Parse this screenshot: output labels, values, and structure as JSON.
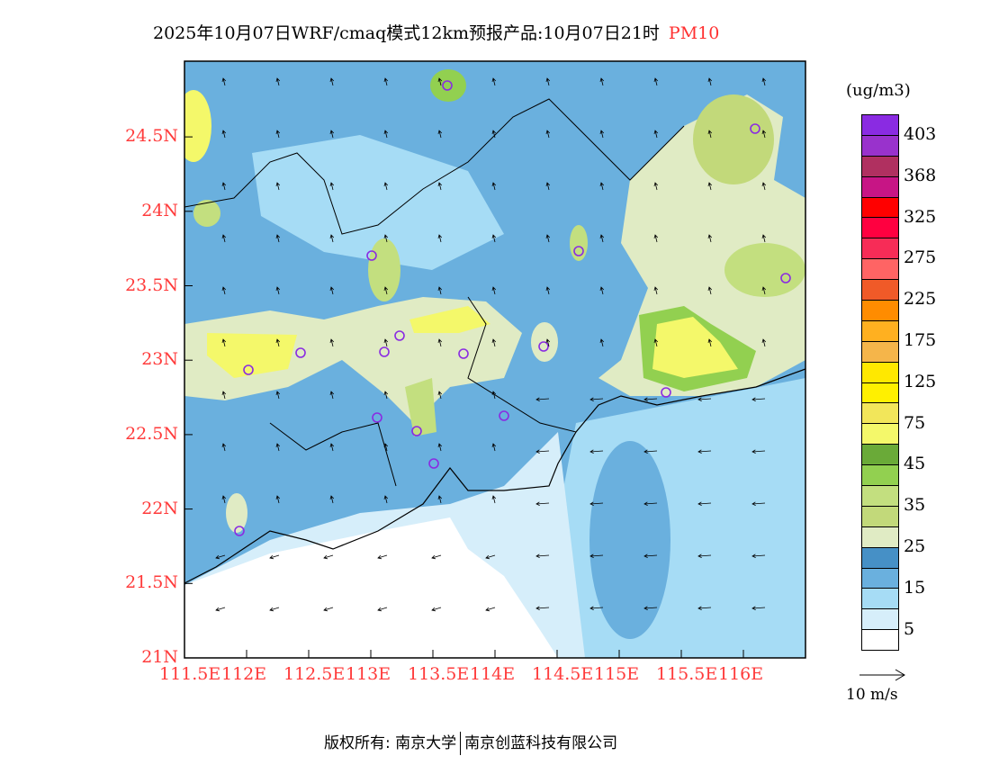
{
  "title": {
    "main": "2025年10月07日WRF/cmaq模式12km预报产品:10月07日21时",
    "pollutant": "PM10",
    "pollutant_color": "#ff3030"
  },
  "colorbar": {
    "unit": "(ug/m3)",
    "colors": [
      "#8a2be2",
      "#9932cc",
      "#b03060",
      "#c71585",
      "#ff0000",
      "#ff0040",
      "#f72c57",
      "#ff6464",
      "#f05a28",
      "#ff8c00",
      "#ffb020",
      "#f5b54a",
      "#ffe800",
      "#fff000",
      "#f2e65a",
      "#f4f86a",
      "#6aaa38",
      "#92d050",
      "#c3df7f",
      "#c2d97a",
      "#e0ebc4",
      "#4690c6",
      "#6ab0de",
      "#a6dcf5",
      "#d6eefa",
      "#ffffff"
    ],
    "labels": [
      "403",
      "368",
      "325",
      "275",
      "225",
      "175",
      "125",
      "75",
      "45",
      "35",
      "25",
      "15",
      "5"
    ]
  },
  "wind_reference": {
    "label": "10 m/s"
  },
  "axes": {
    "lon_labels": [
      "111.5E",
      "112E",
      "112.5E",
      "113E",
      "113.5E",
      "114E",
      "114.5E",
      "115E",
      "115.5E",
      "116E"
    ],
    "lat_labels": [
      "21N",
      "21.5N",
      "22N",
      "22.5N",
      "23N",
      "23.5N",
      "24N",
      "24.5N"
    ]
  },
  "footer": {
    "left": "版权所有: 南京大学",
    "right": "南京创蓝科技有限公司"
  }
}
